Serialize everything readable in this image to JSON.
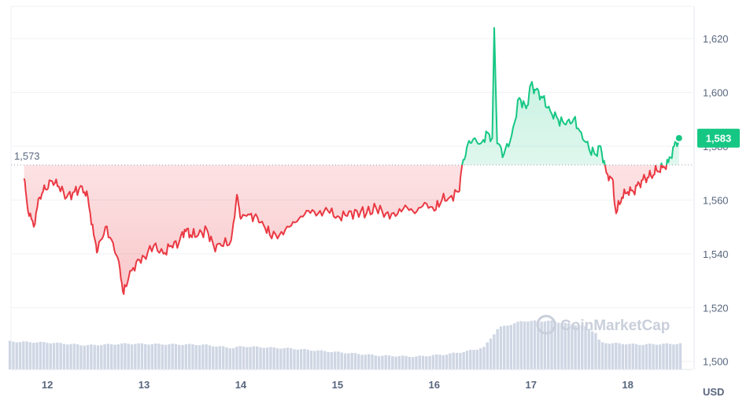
{
  "chart_data": {
    "type": "area",
    "y_ticks": [
      1500,
      1520,
      1540,
      1560,
      1580,
      1600,
      1620
    ],
    "ylim": [
      1497,
      1632
    ],
    "x_day_range": [
      11.625,
      18.67
    ],
    "x_ticks": [
      {
        "day": 12,
        "label": "12"
      },
      {
        "day": 13,
        "label": "13"
      },
      {
        "day": 14,
        "label": "14"
      },
      {
        "day": 15,
        "label": "15"
      },
      {
        "day": 16,
        "label": "16"
      },
      {
        "day": 17,
        "label": "17"
      },
      {
        "day": 18,
        "label": "18"
      }
    ],
    "unit_label": "USD",
    "reference": {
      "value": 1573,
      "label": "1,573"
    },
    "current": {
      "value": 1583,
      "label": "1,583"
    },
    "colors": {
      "up": "#16c784",
      "down": "#ea3943",
      "grid": "#eff2f5",
      "volume": "#cfd6e4",
      "badge": "#16c784"
    },
    "watermark": "CoinMarketCap",
    "series": [
      {
        "type": "line",
        "points": [
          [
            11.76,
            1568
          ],
          [
            11.8,
            1556
          ],
          [
            11.86,
            1550
          ],
          [
            11.92,
            1561
          ],
          [
            11.98,
            1564
          ],
          [
            12.05,
            1567
          ],
          [
            12.12,
            1565
          ],
          [
            12.2,
            1561
          ],
          [
            12.28,
            1563
          ],
          [
            12.36,
            1565
          ],
          [
            12.42,
            1561
          ],
          [
            12.48,
            1547
          ],
          [
            12.52,
            1541
          ],
          [
            12.6,
            1550
          ],
          [
            12.68,
            1544
          ],
          [
            12.74,
            1537
          ],
          [
            12.79,
            1525
          ],
          [
            12.84,
            1531
          ],
          [
            12.92,
            1537
          ],
          [
            13.0,
            1539
          ],
          [
            13.1,
            1543
          ],
          [
            13.2,
            1540
          ],
          [
            13.28,
            1543
          ],
          [
            13.36,
            1544
          ],
          [
            13.42,
            1549
          ],
          [
            13.48,
            1547
          ],
          [
            13.56,
            1547
          ],
          [
            13.65,
            1549
          ],
          [
            13.72,
            1543
          ],
          [
            13.8,
            1543
          ],
          [
            13.9,
            1545
          ],
          [
            13.96,
            1562
          ],
          [
            14.0,
            1553
          ],
          [
            14.06,
            1554
          ],
          [
            14.14,
            1554
          ],
          [
            14.22,
            1552
          ],
          [
            14.3,
            1547
          ],
          [
            14.4,
            1547
          ],
          [
            14.5,
            1550
          ],
          [
            14.6,
            1553
          ],
          [
            14.7,
            1556
          ],
          [
            14.8,
            1555
          ],
          [
            14.9,
            1556
          ],
          [
            15.0,
            1554
          ],
          [
            15.1,
            1554
          ],
          [
            15.2,
            1556
          ],
          [
            15.3,
            1555
          ],
          [
            15.4,
            1557
          ],
          [
            15.5,
            1555
          ],
          [
            15.6,
            1554
          ],
          [
            15.7,
            1558
          ],
          [
            15.8,
            1555
          ],
          [
            15.9,
            1559
          ],
          [
            16.0,
            1556
          ],
          [
            16.08,
            1560
          ],
          [
            16.16,
            1561
          ],
          [
            16.25,
            1563
          ],
          [
            16.3,
            1575
          ],
          [
            16.36,
            1582
          ],
          [
            16.42,
            1583
          ],
          [
            16.48,
            1581
          ],
          [
            16.55,
            1585
          ],
          [
            16.6,
            1583
          ],
          [
            16.62,
            1624
          ],
          [
            16.65,
            1581
          ],
          [
            16.72,
            1577
          ],
          [
            16.8,
            1584
          ],
          [
            16.88,
            1598
          ],
          [
            16.95,
            1594
          ],
          [
            17.0,
            1603
          ],
          [
            17.05,
            1601
          ],
          [
            17.12,
            1598
          ],
          [
            17.2,
            1593
          ],
          [
            17.28,
            1590
          ],
          [
            17.36,
            1588
          ],
          [
            17.44,
            1590
          ],
          [
            17.52,
            1585
          ],
          [
            17.6,
            1579
          ],
          [
            17.66,
            1577
          ],
          [
            17.72,
            1580
          ],
          [
            17.78,
            1570
          ],
          [
            17.84,
            1568
          ],
          [
            17.88,
            1555
          ],
          [
            17.94,
            1561
          ],
          [
            18.0,
            1563
          ],
          [
            18.06,
            1563
          ],
          [
            18.12,
            1566
          ],
          [
            18.18,
            1568
          ],
          [
            18.24,
            1569
          ],
          [
            18.3,
            1571
          ],
          [
            18.36,
            1572
          ],
          [
            18.42,
            1574
          ],
          [
            18.48,
            1580
          ],
          [
            18.53,
            1583
          ]
        ]
      },
      {
        "type": "bar",
        "range": [
          11.6,
          18.54
        ],
        "points": [
          [
            11.6,
            1507.4
          ],
          [
            12.0,
            1507.0
          ],
          [
            12.4,
            1506.0
          ],
          [
            12.8,
            1506.6
          ],
          [
            13.2,
            1506.4
          ],
          [
            13.6,
            1506.2
          ],
          [
            13.9,
            1505.0
          ],
          [
            14.0,
            1505.6
          ],
          [
            14.5,
            1504.8
          ],
          [
            15.0,
            1503.4
          ],
          [
            15.4,
            1502.2
          ],
          [
            15.8,
            1501.8
          ],
          [
            16.1,
            1502.6
          ],
          [
            16.3,
            1503.6
          ],
          [
            16.5,
            1505.2
          ],
          [
            16.65,
            1512.5
          ],
          [
            16.9,
            1515.0
          ],
          [
            17.2,
            1515.0
          ],
          [
            17.55,
            1513.0
          ],
          [
            17.66,
            1510.5
          ],
          [
            17.7,
            1507.0
          ],
          [
            18.1,
            1506.3
          ],
          [
            18.54,
            1506.6
          ]
        ]
      }
    ]
  }
}
